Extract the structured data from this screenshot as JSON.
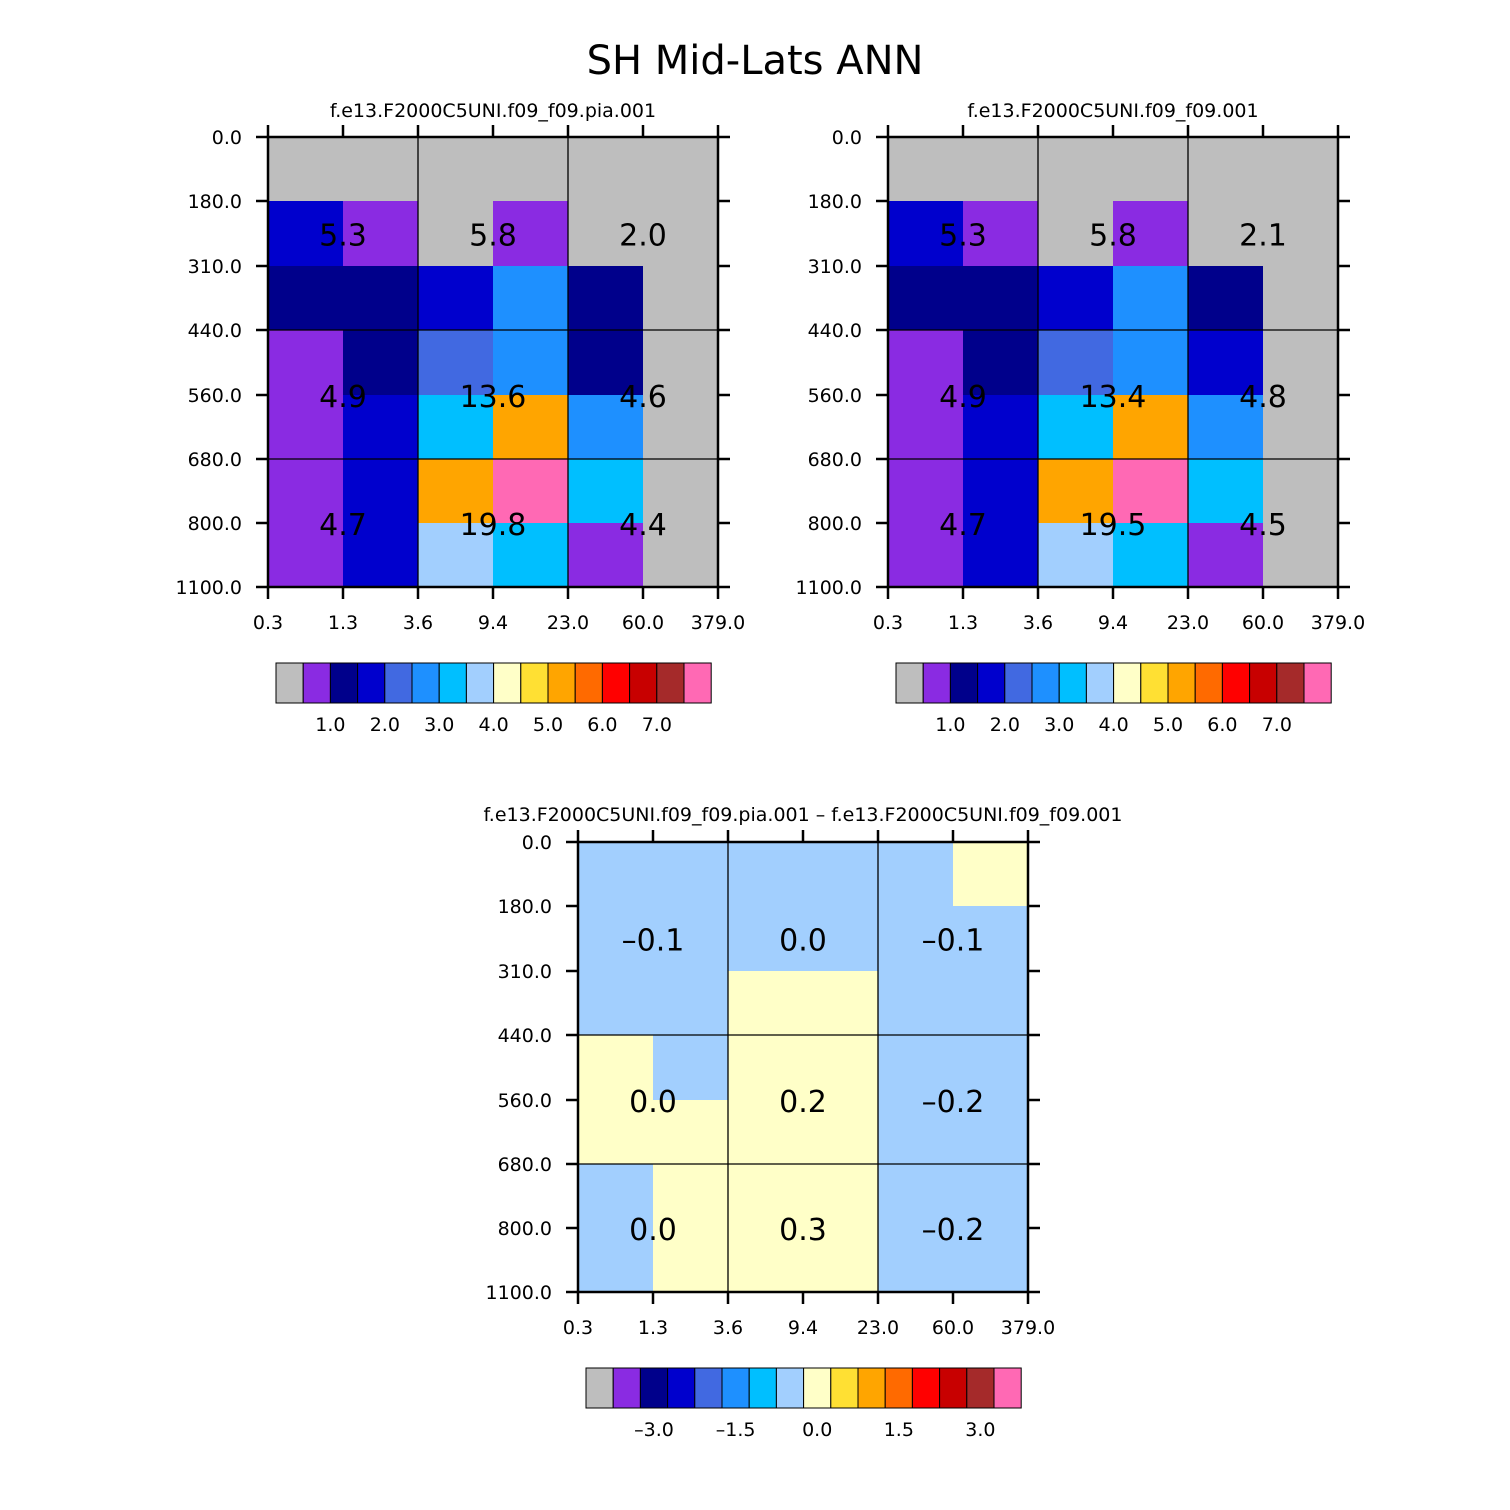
{
  "colors": {
    "palette": [
      "#bebebe",
      "#8a2be2",
      "#00008b",
      "#0000cd",
      "#4169e1",
      "#1e90ff",
      "#00bfff",
      "#a2cffe",
      "#ffffc8",
      "#ffe033",
      "#ffa500",
      "#ff6a00",
      "#ff0000",
      "#c80000",
      "#a52a2a",
      "#ff69b4"
    ]
  },
  "chart_data": {
    "title": "SH Mid-Lats ANN",
    "x_ticks": [
      "0.3",
      "1.3",
      "3.6",
      "9.4",
      "23.0",
      "60.0",
      "379.0"
    ],
    "y_ticks": [
      "0.0",
      "180.0",
      "310.0",
      "440.0",
      "560.0",
      "680.0",
      "800.0",
      "1100.0"
    ],
    "panels": [
      {
        "type": "heatmap",
        "title": "f.e13.F2000C5UNI.f09_f09.pia.001",
        "grid_color_index": [
          [
            0,
            0,
            0,
            0,
            0,
            0
          ],
          [
            3,
            1,
            0,
            1,
            0,
            0
          ],
          [
            2,
            2,
            3,
            5,
            2,
            0
          ],
          [
            1,
            2,
            4,
            5,
            2,
            0
          ],
          [
            1,
            3,
            6,
            10,
            5,
            0
          ],
          [
            1,
            3,
            10,
            15,
            6,
            0
          ],
          [
            1,
            3,
            7,
            6,
            1,
            0
          ]
        ],
        "cell_labels": [
          [
            "5.3",
            "5.8",
            "2.0"
          ],
          [
            "4.9",
            "13.6",
            "4.6"
          ],
          [
            "4.7",
            "19.8",
            "4.4"
          ]
        ],
        "colorbar": {
          "labels": [
            "1.0",
            "2.0",
            "3.0",
            "4.0",
            "5.0",
            "6.0",
            "7.0"
          ],
          "label_after_box": [
            1,
            3,
            5,
            7,
            9,
            11,
            13
          ]
        }
      },
      {
        "type": "heatmap",
        "title": "f.e13.F2000C5UNI.f09_f09.001",
        "grid_color_index": [
          [
            0,
            0,
            0,
            0,
            0,
            0
          ],
          [
            3,
            1,
            0,
            1,
            0,
            0
          ],
          [
            2,
            2,
            3,
            5,
            2,
            0
          ],
          [
            1,
            2,
            4,
            5,
            3,
            0
          ],
          [
            1,
            3,
            6,
            10,
            5,
            0
          ],
          [
            1,
            3,
            10,
            15,
            6,
            0
          ],
          [
            1,
            3,
            7,
            6,
            1,
            0
          ]
        ],
        "cell_labels": [
          [
            "5.3",
            "5.8",
            "2.1"
          ],
          [
            "4.9",
            "13.4",
            "4.8"
          ],
          [
            "4.7",
            "19.5",
            "4.5"
          ]
        ],
        "colorbar": {
          "labels": [
            "1.0",
            "2.0",
            "3.0",
            "4.0",
            "5.0",
            "6.0",
            "7.0"
          ],
          "label_after_box": [
            1,
            3,
            5,
            7,
            9,
            11,
            13
          ]
        }
      },
      {
        "type": "heatmap",
        "title": "f.e13.F2000C5UNI.f09_f09.pia.001 – f.e13.F2000C5UNI.f09_f09.001",
        "grid_color_index": [
          [
            7,
            7,
            7,
            7,
            7,
            8
          ],
          [
            7,
            7,
            7,
            7,
            7,
            7
          ],
          [
            7,
            7,
            8,
            8,
            7,
            7
          ],
          [
            8,
            7,
            8,
            8,
            7,
            7
          ],
          [
            8,
            8,
            8,
            8,
            7,
            7
          ],
          [
            7,
            8,
            8,
            8,
            7,
            7
          ],
          [
            7,
            8,
            8,
            8,
            7,
            7
          ]
        ],
        "cell_labels": [
          [
            "–0.1",
            "0.0",
            "–0.1"
          ],
          [
            "0.0",
            "0.2",
            "–0.2"
          ],
          [
            "0.0",
            "0.3",
            "–0.2"
          ]
        ],
        "colorbar": {
          "labels": [
            "–3.0",
            "–1.5",
            "0.0",
            "1.5",
            "3.0"
          ],
          "label_after_box": [
            1.5,
            4.5,
            7.5,
            10.5,
            13.5
          ]
        }
      }
    ]
  }
}
